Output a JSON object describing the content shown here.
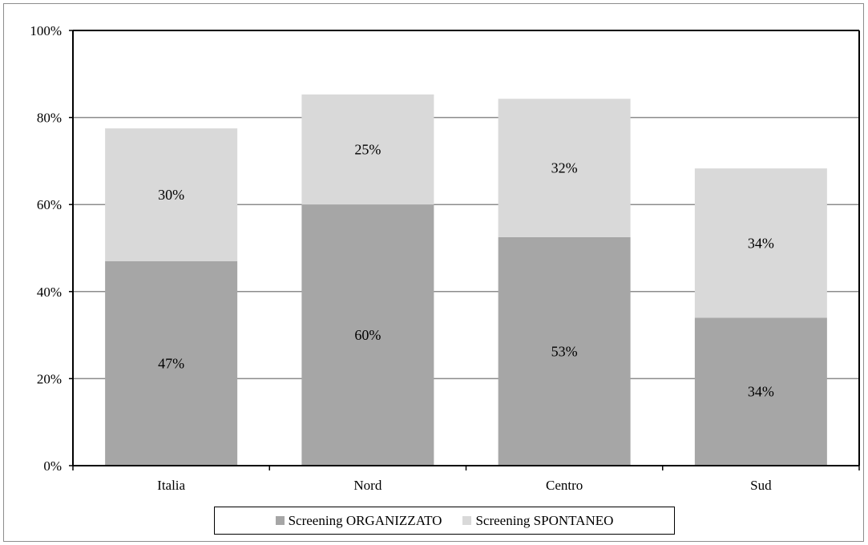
{
  "chart_data": {
    "type": "bar",
    "stacked": true,
    "categories": [
      "Italia",
      "Nord",
      "Centro",
      "Sud"
    ],
    "series": [
      {
        "name": "Screening ORGANIZZATO",
        "values": [
          47,
          60,
          52.5,
          34
        ],
        "labels": [
          "47%",
          "60%",
          "53%",
          "34%"
        ],
        "color": "#a6a6a6"
      },
      {
        "name": "Screening SPONTANEO",
        "values": [
          30.5,
          25.3,
          31.8,
          34.3
        ],
        "labels": [
          "30%",
          "25%",
          "32%",
          "34%"
        ],
        "color": "#d9d9d9"
      }
    ],
    "y_ticks": [
      "0%",
      "20%",
      "40%",
      "60%",
      "80%",
      "100%"
    ],
    "ylim": [
      0,
      100
    ],
    "grid": true,
    "legend_position": "bottom",
    "title": "",
    "xlabel": "",
    "ylabel": ""
  }
}
